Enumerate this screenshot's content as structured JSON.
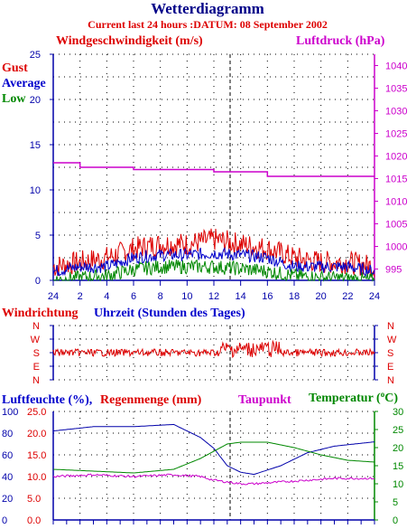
{
  "title": "Wetterdiagramm",
  "subtitle": "Current last 24 hours :DATUM: 08 September 2002",
  "colors": {
    "gust": "#dd0000",
    "average": "#0000cc",
    "low": "#008800",
    "pressure": "#cc00cc",
    "axis": "#0000aa",
    "grid": "#000000"
  },
  "wind": {
    "title_left": "Windgeschwindigkeit (m/s)",
    "title_right": "Luftdruck (hPa)",
    "legend": [
      "Gust",
      "Average",
      "Low"
    ],
    "y_ticks": [
      "0",
      "5",
      "10",
      "15",
      "20",
      "25"
    ],
    "p_ticks": [
      "995",
      "1000",
      "1005",
      "1010",
      "1015",
      "1020",
      "1025",
      "1030",
      "1035",
      "1040"
    ],
    "x_ticks": [
      "24",
      "2",
      "4",
      "6",
      "8",
      "10",
      "12",
      "14",
      "16",
      "18",
      "20",
      "22",
      "24"
    ]
  },
  "direction": {
    "title_left": "Windrichtung",
    "title_center": "Uhrzeit (Stunden des Tages)",
    "labels": [
      "N",
      "W",
      "S",
      "E",
      "N"
    ]
  },
  "humidity": {
    "title_hum": "Luftfeuchte (%),",
    "title_rain": "Regenmenge (mm)",
    "title_dew": "Taupunkt",
    "title_temp": "Temperatur (",
    "title_temp_unit": "C)",
    "hum_ticks": [
      "0",
      "20",
      "40",
      "60",
      "80",
      "100"
    ],
    "rain_ticks": [
      "0.0",
      "5.0",
      "10.0",
      "15.0",
      "20.0",
      "25.0"
    ],
    "temp_ticks": [
      "0",
      "5",
      "10",
      "15",
      "20",
      "25",
      "30"
    ]
  },
  "chart_data": [
    {
      "type": "line",
      "xlabel": "Uhrzeit (Stunden des Tages)",
      "x": [
        0,
        2,
        4,
        6,
        8,
        10,
        12,
        14,
        16,
        18,
        20,
        22,
        24
      ],
      "xlim": [
        0,
        24
      ],
      "ylim": [
        0,
        25
      ],
      "y2lim": [
        992.5,
        1042.5
      ],
      "series": [
        {
          "name": "Gust",
          "axis": "left",
          "values": [
            1.5,
            2.0,
            2.5,
            3.5,
            4.0,
            4.0,
            4.5,
            4.0,
            3.5,
            2.5,
            2.0,
            2.0,
            1.5
          ]
        },
        {
          "name": "Average",
          "axis": "left",
          "values": [
            1.0,
            1.5,
            1.5,
            2.5,
            2.8,
            2.8,
            3.0,
            2.8,
            2.5,
            1.5,
            1.5,
            1.5,
            1.0
          ]
        },
        {
          "name": "Low",
          "axis": "left",
          "values": [
            0.0,
            0.3,
            0.5,
            1.2,
            1.5,
            1.5,
            1.5,
            1.3,
            1.0,
            0.5,
            0.3,
            0.2,
            0.0
          ]
        },
        {
          "name": "Luftdruck",
          "axis": "right",
          "values": [
            1018.5,
            1017.5,
            1017.5,
            1017.0,
            1017.0,
            1017.0,
            1016.5,
            1016.5,
            1015.5,
            1015.5,
            1015.5,
            1015.5,
            1015.5
          ]
        }
      ]
    },
    {
      "type": "line",
      "xlim": [
        0,
        24
      ],
      "y_labels": [
        "N",
        "W",
        "S",
        "E",
        "N"
      ],
      "series": [
        {
          "name": "Windrichtung",
          "x": [
            0,
            3,
            6,
            9,
            12,
            13,
            15,
            18,
            21,
            24
          ],
          "values": [
            "S",
            "S",
            "S",
            "S",
            "S",
            "S/W",
            "S/W",
            "S",
            "S",
            "S"
          ]
        }
      ]
    },
    {
      "type": "line",
      "xlim": [
        0,
        24
      ],
      "ylim": [
        0,
        100
      ],
      "y2lim": [
        0,
        30
      ],
      "series": [
        {
          "name": "Luftfeuchte (%)",
          "axis": "left",
          "x": [
            0,
            3,
            6,
            9,
            11,
            12,
            13,
            14,
            15,
            17,
            19,
            21,
            24
          ],
          "values": [
            82,
            86,
            86,
            88,
            76,
            66,
            50,
            44,
            42,
            50,
            62,
            68,
            72
          ]
        },
        {
          "name": "Taupunkt",
          "axis": "right",
          "x": [
            0,
            3,
            6,
            9,
            11,
            12,
            13,
            14,
            15,
            17,
            19,
            21,
            24
          ],
          "values": [
            12,
            12.5,
            12,
            12.5,
            12,
            11,
            10.5,
            10,
            10,
            10.5,
            11,
            11.5,
            11.5
          ]
        },
        {
          "name": "Temperatur (°C)",
          "axis": "right",
          "x": [
            0,
            3,
            6,
            9,
            11,
            12,
            13,
            14,
            16,
            18,
            20,
            22,
            24
          ],
          "values": [
            14,
            13.5,
            13,
            14,
            17,
            19,
            21,
            21.5,
            21.5,
            20,
            18,
            16.5,
            16
          ]
        }
      ]
    }
  ]
}
